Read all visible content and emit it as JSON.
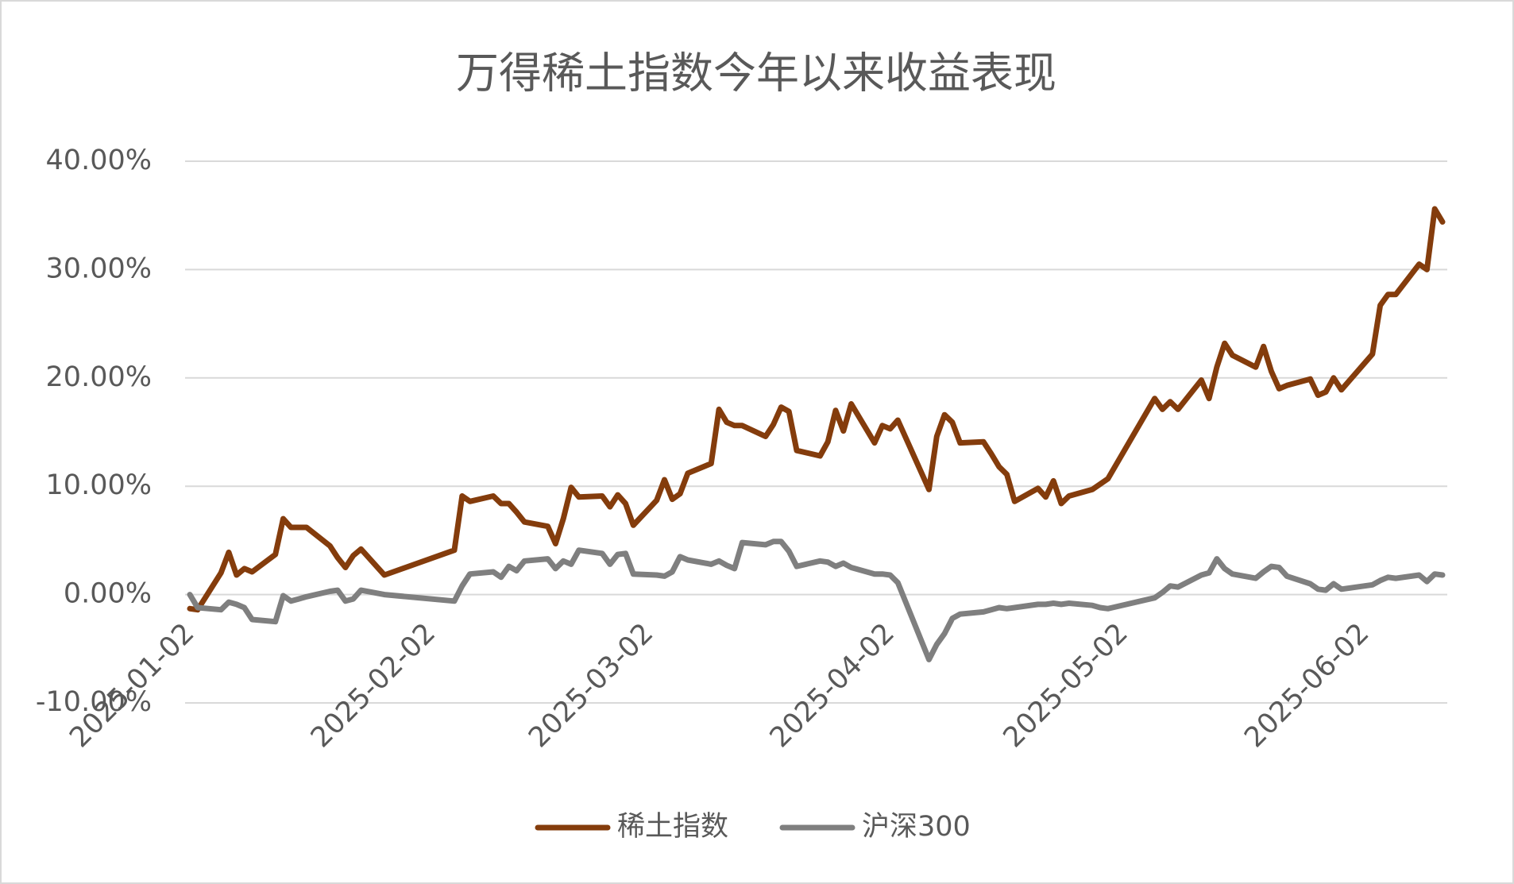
{
  "chart_data": {
    "type": "line",
    "title": "万得稀土指数今年以来收益表现",
    "x": [
      "2025-01-02",
      "2025-01-03",
      "2025-01-06",
      "2025-01-07",
      "2025-01-08",
      "2025-01-09",
      "2025-01-10",
      "2025-01-13",
      "2025-01-14",
      "2025-01-15",
      "2025-01-16",
      "2025-01-17",
      "2025-01-20",
      "2025-01-21",
      "2025-01-22",
      "2025-01-23",
      "2025-01-24",
      "2025-01-27",
      "2025-02-05",
      "2025-02-06",
      "2025-02-07",
      "2025-02-10",
      "2025-02-11",
      "2025-02-12",
      "2025-02-13",
      "2025-02-14",
      "2025-02-17",
      "2025-02-18",
      "2025-02-19",
      "2025-02-20",
      "2025-02-21",
      "2025-02-24",
      "2025-02-25",
      "2025-02-26",
      "2025-02-27",
      "2025-02-28",
      "2025-03-03",
      "2025-03-04",
      "2025-03-05",
      "2025-03-06",
      "2025-03-07",
      "2025-03-10",
      "2025-03-11",
      "2025-03-12",
      "2025-03-13",
      "2025-03-14",
      "2025-03-17",
      "2025-03-18",
      "2025-03-19",
      "2025-03-20",
      "2025-03-21",
      "2025-03-24",
      "2025-03-25",
      "2025-03-26",
      "2025-03-27",
      "2025-03-28",
      "2025-03-31",
      "2025-04-01",
      "2025-04-02",
      "2025-04-03",
      "2025-04-07",
      "2025-04-08",
      "2025-04-09",
      "2025-04-10",
      "2025-04-11",
      "2025-04-14",
      "2025-04-15",
      "2025-04-16",
      "2025-04-17",
      "2025-04-18",
      "2025-04-21",
      "2025-04-22",
      "2025-04-23",
      "2025-04-24",
      "2025-04-25",
      "2025-04-28",
      "2025-04-29",
      "2025-04-30",
      "2025-05-06",
      "2025-05-07",
      "2025-05-08",
      "2025-05-09",
      "2025-05-12",
      "2025-05-13",
      "2025-05-14",
      "2025-05-15",
      "2025-05-16",
      "2025-05-19",
      "2025-05-20",
      "2025-05-21",
      "2025-05-22",
      "2025-05-23",
      "2025-05-26",
      "2025-05-27",
      "2025-05-28",
      "2025-05-29",
      "2025-05-30",
      "2025-06-03",
      "2025-06-04",
      "2025-06-05",
      "2025-06-06",
      "2025-06-09",
      "2025-06-10",
      "2025-06-11",
      "2025-06-12"
    ],
    "series": [
      {
        "name": "稀土指数",
        "color": "#843c0c",
        "values": [
          -1.3,
          -1.4,
          2.0,
          3.9,
          1.8,
          2.4,
          2.1,
          3.7,
          7.0,
          6.2,
          6.2,
          6.2,
          4.5,
          3.4,
          2.5,
          3.6,
          4.2,
          1.8,
          4.1,
          9.1,
          8.6,
          9.1,
          8.4,
          8.4,
          7.6,
          6.7,
          6.3,
          4.7,
          7.0,
          9.9,
          9.0,
          9.1,
          8.1,
          9.2,
          8.4,
          6.4,
          8.7,
          10.6,
          8.8,
          9.3,
          11.2,
          12.1,
          17.1,
          15.9,
          15.6,
          15.6,
          14.6,
          15.7,
          17.3,
          16.9,
          13.3,
          12.8,
          14.1,
          17.0,
          15.1,
          17.6,
          14.0,
          15.6,
          15.3,
          16.1,
          9.7,
          14.6,
          16.6,
          15.9,
          14.0,
          14.1,
          13.0,
          11.8,
          11.1,
          8.6,
          9.8,
          9.0,
          10.5,
          8.4,
          9.1,
          9.7,
          10.2,
          10.7,
          18.1,
          17.1,
          17.8,
          17.1,
          19.8,
          18.1,
          21.0,
          23.2,
          22.1,
          21.0,
          22.9,
          20.6,
          19.0,
          19.3,
          19.9,
          18.4,
          18.7,
          20.0,
          18.9,
          22.2,
          26.7,
          27.7,
          27.7,
          30.5,
          30.0,
          35.6,
          34.4
        ]
      },
      {
        "name": "沪深300",
        "color": "#7f7f7f",
        "values": [
          0.0,
          -1.2,
          -1.4,
          -0.7,
          -0.9,
          -1.2,
          -2.3,
          -2.5,
          -0.1,
          -0.6,
          -0.4,
          -0.2,
          0.3,
          0.4,
          -0.6,
          -0.4,
          0.4,
          0.0,
          -0.6,
          0.8,
          1.9,
          2.1,
          1.6,
          2.6,
          2.2,
          3.1,
          3.3,
          2.4,
          3.1,
          2.8,
          4.1,
          3.8,
          2.8,
          3.7,
          3.8,
          1.9,
          1.8,
          1.7,
          2.1,
          3.5,
          3.2,
          2.8,
          3.1,
          2.7,
          2.4,
          4.8,
          4.6,
          4.9,
          4.9,
          4.0,
          2.6,
          3.1,
          3.0,
          2.6,
          2.9,
          2.5,
          1.9,
          1.9,
          1.8,
          1.1,
          -6.0,
          -4.6,
          -3.6,
          -2.2,
          -1.8,
          -1.6,
          -1.4,
          -1.2,
          -1.3,
          -1.2,
          -0.9,
          -0.9,
          -0.8,
          -0.9,
          -0.8,
          -1.0,
          -1.2,
          -1.3,
          -0.3,
          0.2,
          0.8,
          0.7,
          1.8,
          2.0,
          3.3,
          2.4,
          1.9,
          1.5,
          2.1,
          2.6,
          2.5,
          1.7,
          1.0,
          0.5,
          0.4,
          1.0,
          0.5,
          0.9,
          1.3,
          1.6,
          1.5,
          1.8,
          1.2,
          1.9,
          1.8
        ]
      }
    ],
    "xlim": [
      "2025-01-02",
      "2025-06-12"
    ],
    "xticks": [
      "2025-01-02",
      "2025-02-02",
      "2025-03-02",
      "2025-04-02",
      "2025-05-02",
      "2025-06-02"
    ],
    "ylim": [
      -10,
      40
    ],
    "yticks": [
      {
        "value": -10,
        "label": "-10.00%"
      },
      {
        "value": 0,
        "label": "0.00%"
      },
      {
        "value": 10,
        "label": "10.00%"
      },
      {
        "value": 20,
        "label": "20.00%"
      },
      {
        "value": 30,
        "label": "30.00%"
      },
      {
        "value": 40,
        "label": "40.00%"
      }
    ],
    "grid": true,
    "legend": "bottom"
  }
}
